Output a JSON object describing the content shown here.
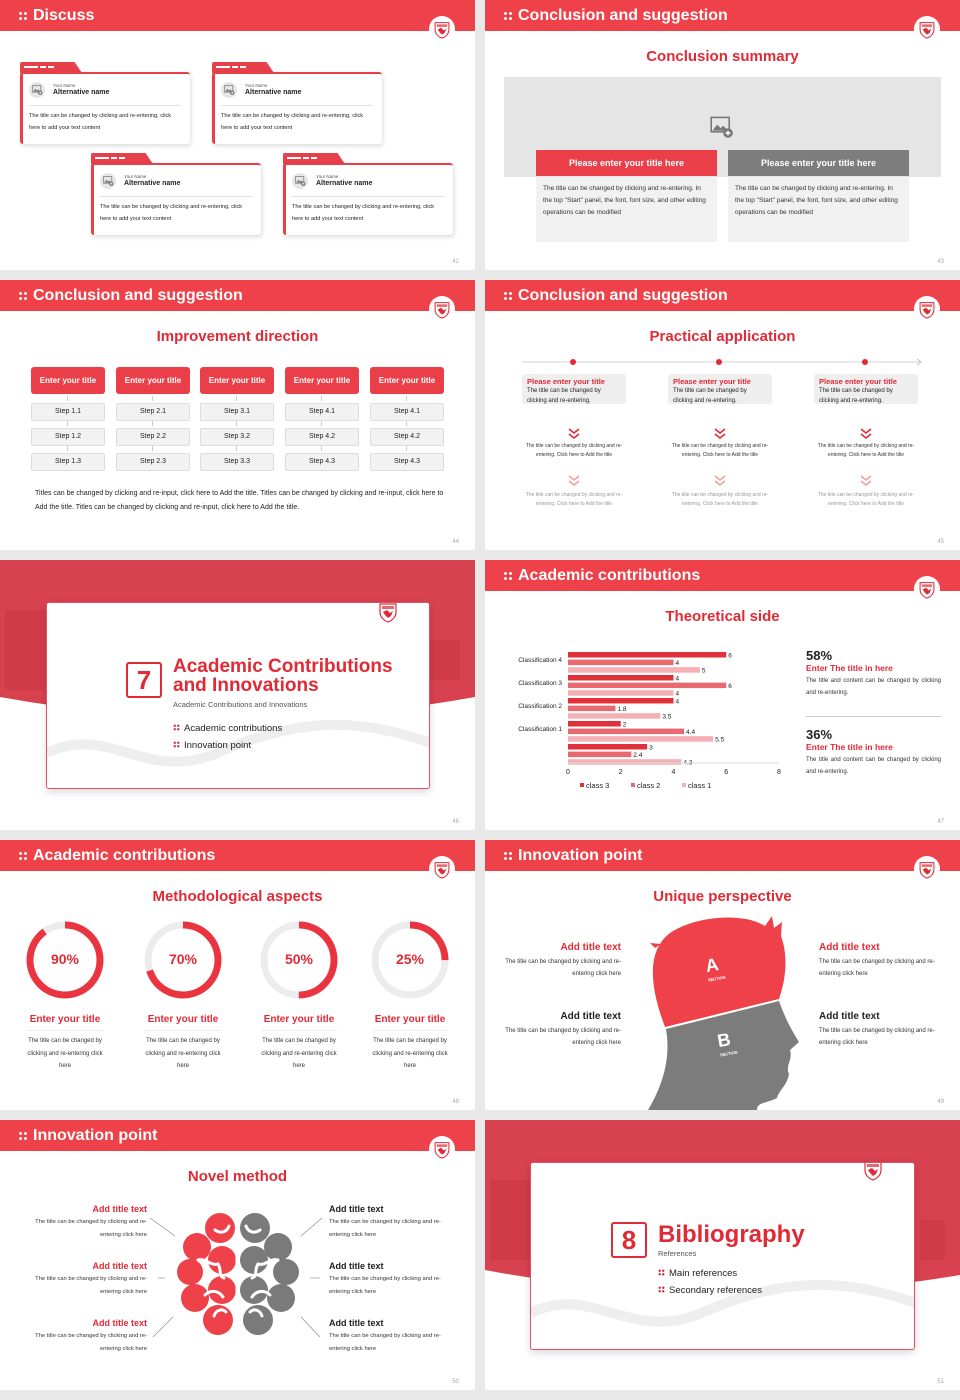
{
  "colors": {
    "brand_red": "#ee4149",
    "title_red": "#e02a36",
    "gray": "#7a7a7a",
    "class3": "#e0303a",
    "class2": "#e86a70",
    "class1": "#f4b0b4"
  },
  "s42": {
    "header": "Discuss",
    "page": "42",
    "cards": [
      {
        "label": "Your Name",
        "name": "Alternative name",
        "text": "The title can be changed by clicking and re-entering, click here to add your text content"
      },
      {
        "label": "Your Name",
        "name": "Alternative name",
        "text": "The title can be changed by clicking and re-entering, click here to add your text content"
      },
      {
        "label": "Your Name",
        "name": "Alternative name",
        "text": "The title can be changed by clicking and re-entering, click here to add your text content"
      },
      {
        "label": "Your Name",
        "name": "Alternative name",
        "text": "The title can be changed by clicking and re-entering, click here to add your text content"
      }
    ]
  },
  "s43": {
    "header": "Conclusion and suggestion",
    "title": "Conclusion summary",
    "page": "43",
    "boxes": [
      {
        "title": "Please enter your title here",
        "text": "The title can be changed by clicking and re-entering. In the top \"Start\" panel, the font, font size, and other editing operations can be modified"
      },
      {
        "title": "Please enter your title here",
        "text": "The title can be changed by clicking and re-entering. In the top \"Start\" panel, the font, font size, and other editing operations can be modified"
      }
    ]
  },
  "s44": {
    "header": "Conclusion and suggestion",
    "title": "Improvement direction",
    "page": "44",
    "columns": [
      {
        "title": "Enter your title",
        "steps": [
          "Step 1.1",
          "Step 1.2",
          "Step 1.3"
        ]
      },
      {
        "title": "Enter your title",
        "steps": [
          "Step 2.1",
          "Step 2.2",
          "Step 2.3"
        ]
      },
      {
        "title": "Enter your title",
        "steps": [
          "Step 3.1",
          "Step 3.2",
          "Step 3.3"
        ]
      },
      {
        "title": "Enter your title",
        "steps": [
          "Step 4.1",
          "Step 4.2",
          "Step 4.3"
        ]
      },
      {
        "title": "Enter your title",
        "steps": [
          "Step 4.1",
          "Step 4.2",
          "Step 4.3"
        ]
      }
    ],
    "paragraph": "Titles can be changed by clicking and re-input, click here to Add the title. Titles can be changed by clicking and re-input, click here to Add the title. Titles can be changed by clicking and re-input, click here to Add the title."
  },
  "s45": {
    "header": "Conclusion and suggestion",
    "title": "Practical application",
    "page": "45",
    "items": [
      {
        "title": "Please enter your title",
        "text": "The title can be changed by clicking and re-entering.",
        "detail1": "The title can be changed by clicking and re-entering. Click here to Add the title",
        "detail2": "The title can be changed by clicking and re-entering. Click here to Add the title"
      },
      {
        "title": "Please enter your title",
        "text": "The title can be changed by clicking and re-entering.",
        "detail1": "The title can be changed by clicking and re-entering. Click here to Add the title",
        "detail2": "The title can be changed by clicking and re-entering. Click here to Add the title"
      },
      {
        "title": "Please enter your title",
        "text": "The title can be changed by clicking and re-entering.",
        "detail1": "The title can be changed by clicking and re-entering. Click here to Add the title",
        "detail2": "The title can be changed by clicking and re-entering. Click here to Add the title"
      }
    ]
  },
  "s46": {
    "number": "7",
    "title": "Academic Contributions and Innovations",
    "subtitle": "Academic Contributions and Innovations",
    "items": [
      "Academic contributions",
      "Innovation point"
    ],
    "page": "46"
  },
  "s47": {
    "header": "Academic contributions",
    "title": "Theoretical side",
    "page": "47",
    "stats": [
      {
        "value": "58%",
        "title": "Enter The title in here",
        "text": "The title and content can be changed by clicking and re-entering."
      },
      {
        "value": "36%",
        "title": "Enter The title in here",
        "text": "The title and content can be changed by clicking and re-entering."
      }
    ]
  },
  "chart_data": {
    "type": "bar",
    "orientation": "horizontal",
    "categories": [
      "Classification 4",
      "Classification 3",
      "Classification 2",
      "Classification 1",
      ""
    ],
    "series": [
      {
        "name": "class 3",
        "values": [
          6,
          4,
          4,
          2,
          3
        ]
      },
      {
        "name": "class 2",
        "values": [
          4,
          6,
          1.8,
          4.4,
          2.4
        ]
      },
      {
        "name": "class 1",
        "values": [
          5,
          4,
          3.5,
          5.5,
          4.3
        ]
      }
    ],
    "xlim": [
      0,
      8
    ],
    "xticks": [
      "0",
      "2",
      "4",
      "6",
      "8"
    ],
    "grid": false,
    "legend": "bottom",
    "data_labels": true
  },
  "s48": {
    "header": "Academic contributions",
    "title": "Methodological aspects",
    "page": "48",
    "items": [
      {
        "pct": 90,
        "label": "90%",
        "title": "Enter your title",
        "text": "The title can be changed by clicking and re-entering click here"
      },
      {
        "pct": 70,
        "label": "70%",
        "title": "Enter your title",
        "text": "The title can be changed by clicking and re-entering click here"
      },
      {
        "pct": 50,
        "label": "50%",
        "title": "Enter your title",
        "text": "The title can be changed by clicking and re-entering click here"
      },
      {
        "pct": 25,
        "label": "25%",
        "title": "Enter your title",
        "text": "The title can be changed by clicking and re-entering click here"
      }
    ]
  },
  "s49": {
    "header": "Innovation point",
    "title": "Unique perspective",
    "page": "49",
    "section_a": "A",
    "section_b": "B",
    "section_word": "SECTION",
    "items": [
      {
        "title": "Add title text",
        "text": "The title can be changed by clicking and re-entering click here"
      },
      {
        "title": "Add title text",
        "text": "The title can be changed by clicking and re-entering click here"
      },
      {
        "title": "Add title text",
        "text": "The title can be changed by clicking and re-entering click here"
      },
      {
        "title": "Add title text",
        "text": "The title can be changed by clicking and re-entering click here"
      }
    ]
  },
  "s50": {
    "header": "Innovation point",
    "title": "Novel method",
    "page": "50",
    "left": [
      {
        "title": "Add title text",
        "text": "The title can be changed by clicking and re-entering click here"
      },
      {
        "title": "Add title text",
        "text": "The title can be changed by clicking and re-entering click here"
      },
      {
        "title": "Add title text",
        "text": "The title can be changed by clicking and re-entering click here"
      }
    ],
    "right": [
      {
        "title": "Add title text",
        "text": "The title can be changed by clicking and re-entering click here"
      },
      {
        "title": "Add title text",
        "text": "The title can be changed by clicking and re-entering click here"
      },
      {
        "title": "Add title text",
        "text": "The title can be changed by clicking and re-entering click here"
      }
    ]
  },
  "s51": {
    "number": "8",
    "title": "Bibliography",
    "subtitle": "References",
    "items": [
      "Main references",
      "Secondary references"
    ],
    "page": "51"
  }
}
